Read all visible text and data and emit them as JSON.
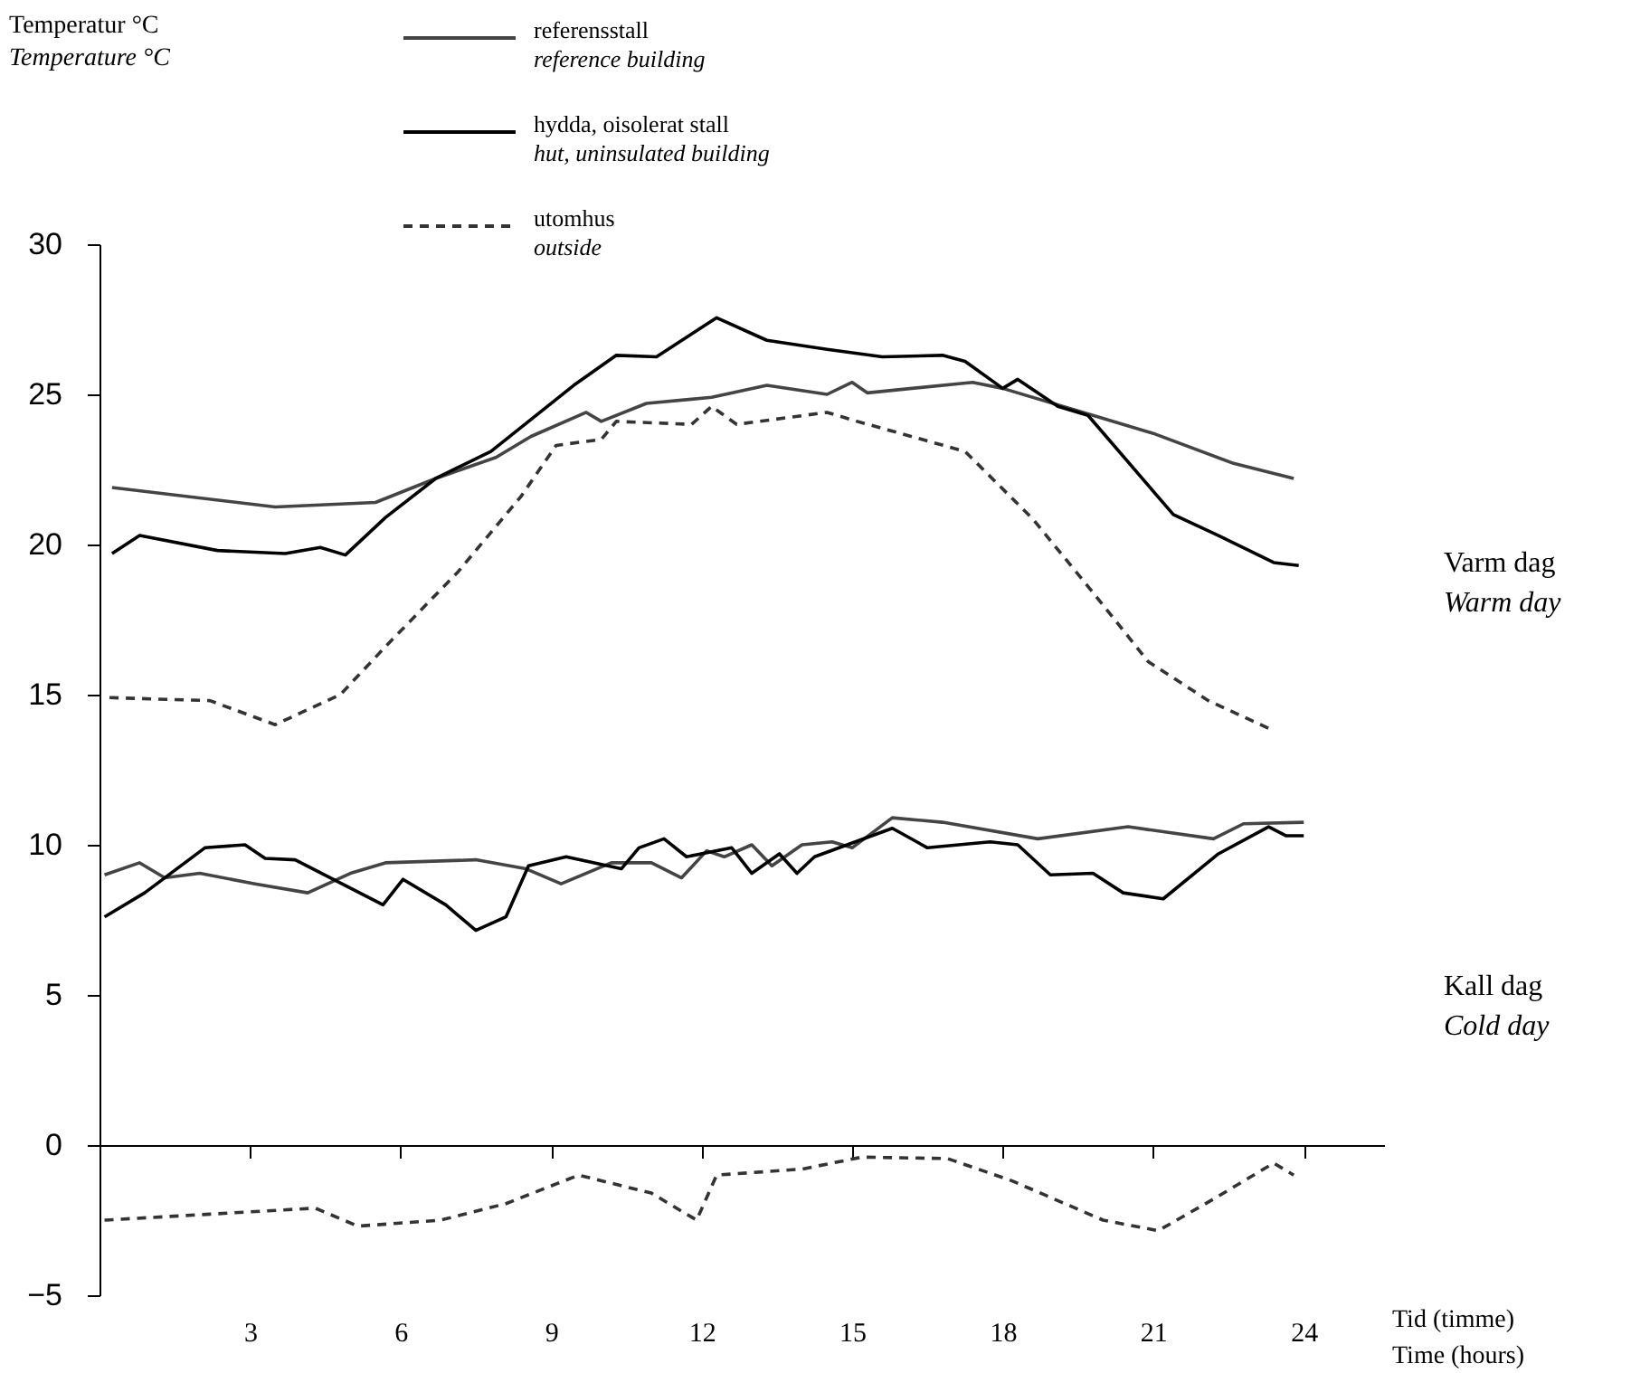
{
  "chart_data": {
    "type": "line",
    "xlabel": "Tid (timme)\nTime (hours)",
    "xlim": [
      0,
      25.6
    ],
    "xticks": [
      3,
      6,
      9,
      12,
      15,
      18,
      21,
      24
    ],
    "ylim": [
      -5,
      30
    ],
    "yticks": [
      -5,
      0,
      5,
      10,
      15,
      20,
      25,
      30
    ],
    "legend": "top",
    "annotations": [
      "Temperatur °C\nTemperature °C",
      "Varm dag\nWarm day",
      "Kall dag\nCold day"
    ],
    "series": [
      {
        "name": "referensstall\nreference building",
        "color": "#444444",
        "line_style": "solid",
        "x": [
          0.25,
          3.5,
          5.5,
          6.7,
          7.9,
          8.6,
          9.7,
          10.0,
          10.9,
          12.2,
          13.3,
          14.5,
          15.0,
          15.3,
          17.4,
          18.0,
          19.8,
          21.0,
          22.6,
          23.8
        ],
        "values": [
          21.9,
          21.25,
          21.4,
          22.2,
          22.9,
          23.6,
          24.4,
          24.1,
          24.7,
          24.9,
          25.3,
          25.0,
          25.4,
          25.05,
          25.4,
          25.2,
          24.3,
          23.7,
          22.7,
          22.2
        ]
      },
      {
        "name": "hydda, oisolerat stall\nhut, uninsulated building",
        "color": "#000000",
        "line_style": "solid",
        "x": [
          0.25,
          0.8,
          2.35,
          3.7,
          4.4,
          4.9,
          5.7,
          6.7,
          7.8,
          9.45,
          10.3,
          11.1,
          12.3,
          13.3,
          14.5,
          15.6,
          16.8,
          17.25,
          18.0,
          18.3,
          19.1,
          19.7,
          21.4,
          22.3,
          23.4,
          23.9
        ],
        "values": [
          19.7,
          20.3,
          19.8,
          19.7,
          19.9,
          19.65,
          20.9,
          22.2,
          23.1,
          25.3,
          26.3,
          26.25,
          27.55,
          26.8,
          26.5,
          26.25,
          26.3,
          26.1,
          25.2,
          25.5,
          24.6,
          24.3,
          21.0,
          20.3,
          19.4,
          19.3
        ]
      },
      {
        "name": "utomhus\noutside",
        "color": "#333333",
        "line_style": "dashed",
        "x": [
          0.2,
          2.2,
          3.5,
          4.8,
          5.7,
          7.15,
          8.4,
          9.1,
          10.0,
          10.3,
          11.8,
          12.2,
          12.7,
          14.5,
          15.1,
          17.25,
          18.6,
          19.8,
          20.9,
          22.1,
          23.4
        ],
        "values": [
          14.9,
          14.8,
          14.0,
          15.0,
          16.6,
          19.1,
          21.6,
          23.3,
          23.5,
          24.1,
          24.0,
          24.6,
          24.0,
          24.4,
          24.1,
          23.1,
          20.85,
          18.4,
          16.1,
          14.8,
          13.8
        ]
      },
      {
        "color": "#444444",
        "line_style": "solid",
        "x": [
          0.1,
          0.8,
          1.3,
          2.0,
          3.1,
          4.15,
          5.0,
          5.7,
          7.5,
          8.5,
          9.2,
          10.2,
          11.0,
          11.6,
          12.1,
          12.45,
          13.0,
          13.4,
          14.0,
          14.6,
          15.0,
          15.8,
          16.8,
          18.7,
          20.5,
          22.2,
          22.8,
          24.0
        ],
        "values": [
          9.0,
          9.4,
          8.9,
          9.05,
          8.7,
          8.4,
          9.05,
          9.4,
          9.5,
          9.2,
          8.7,
          9.4,
          9.4,
          8.9,
          9.8,
          9.6,
          10.0,
          9.3,
          10.0,
          10.1,
          9.9,
          10.9,
          10.75,
          10.2,
          10.6,
          10.2,
          10.7,
          10.75
        ]
      },
      {
        "color": "#000000",
        "line_style": "solid",
        "x": [
          0.1,
          0.9,
          2.1,
          2.9,
          3.3,
          3.9,
          5.65,
          6.05,
          6.9,
          7.5,
          8.1,
          8.55,
          9.3,
          10.4,
          10.75,
          11.25,
          11.7,
          12.6,
          13.0,
          13.55,
          13.9,
          14.25,
          15.8,
          16.5,
          17.75,
          18.3,
          18.95,
          19.8,
          20.4,
          21.2,
          22.3,
          23.3,
          23.65,
          24.0
        ],
        "values": [
          7.6,
          8.4,
          9.9,
          10.0,
          9.55,
          9.5,
          8.0,
          8.85,
          8.0,
          7.15,
          7.6,
          9.3,
          9.6,
          9.2,
          9.9,
          10.2,
          9.6,
          9.9,
          9.05,
          9.7,
          9.05,
          9.6,
          10.55,
          9.9,
          10.1,
          10.0,
          9.0,
          9.05,
          8.4,
          8.2,
          9.7,
          10.6,
          10.3,
          10.3
        ]
      },
      {
        "color": "#333333",
        "line_style": "dashed",
        "x": [
          0.1,
          2.2,
          4.3,
          5.15,
          6.8,
          8.1,
          9.55,
          11.0,
          11.9,
          12.3,
          14.0,
          15.2,
          16.9,
          18.2,
          20.0,
          21.1,
          22.2,
          23.4,
          23.8
        ],
        "values": [
          -2.5,
          -2.3,
          -2.1,
          -2.7,
          -2.5,
          -1.95,
          -1.0,
          -1.6,
          -2.5,
          -1.0,
          -0.8,
          -0.4,
          -0.45,
          -1.2,
          -2.5,
          -2.85,
          -1.8,
          -0.6,
          -1.0
        ]
      }
    ]
  }
}
